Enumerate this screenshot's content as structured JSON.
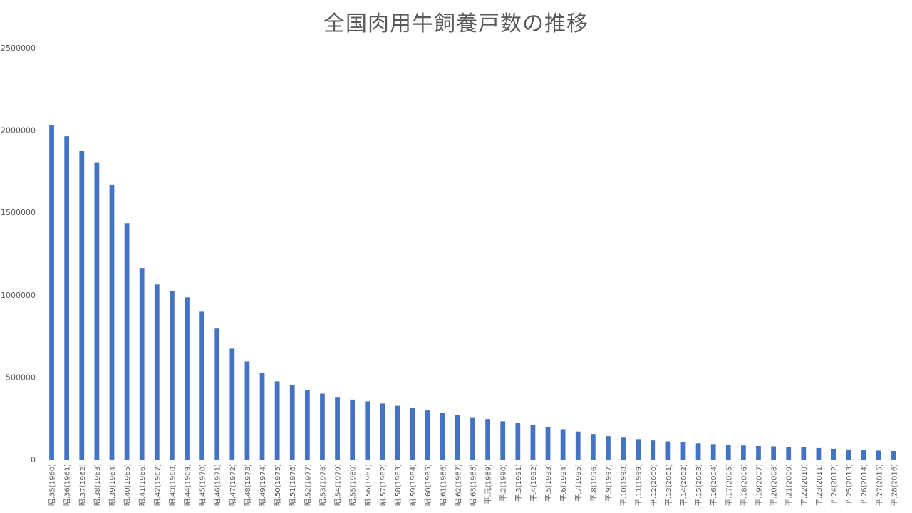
{
  "chart_data": {
    "type": "bar",
    "title": "全国肉用牛飼養戸数の推移",
    "xlabel": "",
    "ylabel": "",
    "ylim": [
      0,
      2500000
    ],
    "yticks": [
      "0",
      "500000",
      "1000000",
      "1500000",
      "2000000",
      "2500000"
    ],
    "grid": false,
    "legend": "none",
    "bar_color": "#4472C4",
    "categories": [
      "昭.35(1960)",
      "昭.36(1961)",
      "昭.37(1962)",
      "昭.38(1963)",
      "昭.39(1964)",
      "昭.40(1965)",
      "昭.41(1966)",
      "昭.42(1967)",
      "昭.43(1968)",
      "昭.44(1969)",
      "昭.45(1970)",
      "昭.46(1971)",
      "昭.47(1972)",
      "昭.48(1973)",
      "昭.49(1974)",
      "昭.50(1975)",
      "昭.51(1976)",
      "昭.52(1977)",
      "昭.53(1978)",
      "昭.54(1979)",
      "昭.55(1980)",
      "昭.56(1981)",
      "昭.57(1982)",
      "昭.58(1983)",
      "昭.59(1984)",
      "昭.60(1985)",
      "昭.61(1986)",
      "昭.62(1987)",
      "昭.63(1988)",
      "平.元(1989)",
      "平.2(1990)",
      "平.3(1991)",
      "平.4(1992)",
      "平.5(1993)",
      "平.6(1994)",
      "平.7(1995)",
      "平.8(1996)",
      "平.9(1997)",
      "平.10(1998)",
      "平.11(1999)",
      "平.12(2000)",
      "平.13(2001)",
      "平.14(2002)",
      "平.15(2003)",
      "平.16(2004)",
      "平.17(2005)",
      "平.18(2006)",
      "平.19(2007)",
      "平.20(2008)",
      "平.21(2009)",
      "平.22(2010)",
      "平.23(2011)",
      "平.24(2012)",
      "平.25(2013)",
      "平.26(2014)",
      "平.27(2015)",
      "平.28(2016)"
    ],
    "values": [
      2030000,
      1963000,
      1873000,
      1801000,
      1670000,
      1435000,
      1163000,
      1063000,
      1023000,
      985000,
      898000,
      795000,
      673000,
      595000,
      528000,
      474000,
      450000,
      423000,
      400000,
      380000,
      364000,
      353000,
      340000,
      326000,
      312000,
      298000,
      283000,
      270000,
      257000,
      246000,
      232000,
      221000,
      210000,
      199000,
      184000,
      170000,
      155000,
      142000,
      133000,
      124000,
      116000,
      110000,
      104000,
      98100,
      93900,
      89600,
      85600,
      82300,
      80400,
      77300,
      74400,
      69600,
      65200,
      61300,
      57500,
      54400,
      51900
    ]
  }
}
